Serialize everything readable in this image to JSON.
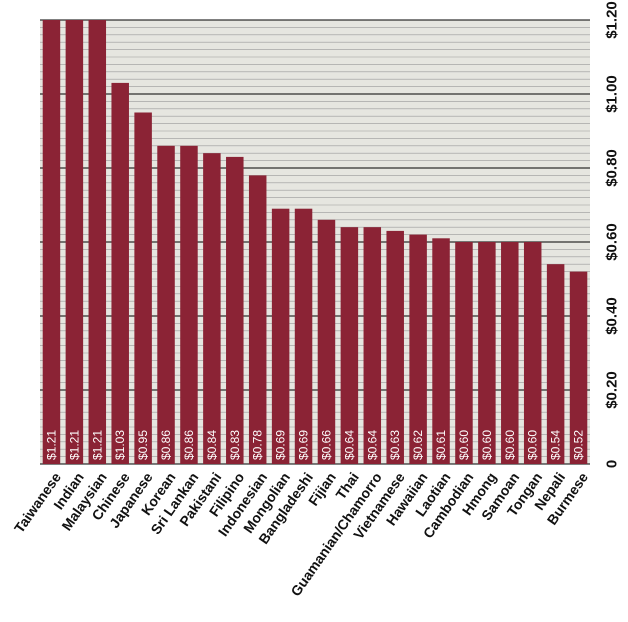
{
  "chart_data": {
    "type": "bar",
    "title": "",
    "xlabel": "",
    "ylabel": "",
    "categories": [
      "Taiwanese",
      "Indian",
      "Malaysian",
      "Chinese",
      "Japanese",
      "Korean",
      "Sri Lankan",
      "Pakistani",
      "Filipino",
      "Indonesian",
      "Mongolian",
      "Bangladeshi",
      "Fijian",
      "Thai",
      "Guamanian/Chamorro",
      "Vietnamese",
      "Hawaiian",
      "Laotian",
      "Cambodian",
      "Hmong",
      "Samoan",
      "Tongan",
      "Nepali",
      "Burmese"
    ],
    "values": [
      1.21,
      1.21,
      1.21,
      1.03,
      0.95,
      0.86,
      0.86,
      0.84,
      0.83,
      0.78,
      0.69,
      0.69,
      0.66,
      0.64,
      0.64,
      0.63,
      0.62,
      0.61,
      0.6,
      0.6,
      0.6,
      0.6,
      0.54,
      0.52
    ],
    "value_labels": [
      "$1.21",
      "$1.21",
      "$1.21",
      "$1.03",
      "$0.95",
      "$0.86",
      "$0.86",
      "$0.84",
      "$0.83",
      "$0.78",
      "$0.69",
      "$0.69",
      "$0.66",
      "$0.64",
      "$0.64",
      "$0.63",
      "$0.62",
      "$0.61",
      "$0.60",
      "$0.60",
      "$0.60",
      "$0.60",
      "$0.54",
      "$0.52"
    ],
    "ylim": [
      0,
      1.2
    ],
    "y_ticks": [
      0,
      0.2,
      0.4,
      0.6,
      0.8,
      1.0,
      1.2
    ],
    "y_tick_labels": [
      "0",
      "$0.20",
      "$0.40",
      "$0.60",
      "$0.80",
      "$1.00",
      "$1.20"
    ],
    "y_axis_side": "right",
    "grid": true,
    "bar_color": "#8b2335",
    "grid_color": "#9a9a9a",
    "major_grid_color": "#000000",
    "plot_background": "#e6e6e0"
  }
}
